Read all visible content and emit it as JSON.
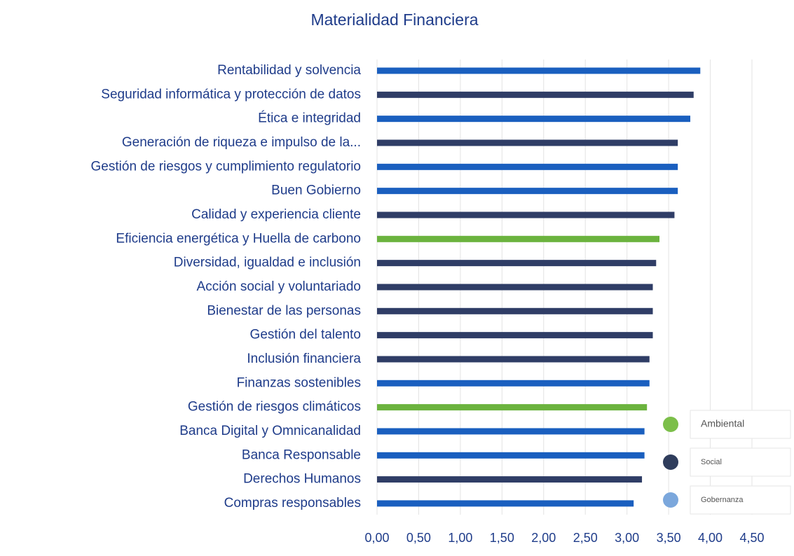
{
  "chart_data": {
    "type": "hbar",
    "title": "Materialidad Financiera",
    "categories": [
      "Rentabilidad y solvencia",
      "Seguridad informática y protección de datos",
      "Ética e integridad",
      "Generación de riqueza e impulso de la...",
      "Gestión de riesgos y cumplimiento regulatorio",
      "Buen Gobierno",
      "Calidad y experiencia cliente",
      "Eficiencia energética y Huella de carbono",
      "Diversidad, igualdad e inclusión",
      "Acción social y voluntariado",
      "Bienestar de las personas",
      "Gestión del talento",
      "Inclusión financiera",
      "Finanzas sostenibles",
      "Gestión de riesgos climáticos",
      "Banca Digital y Omnicanalidad",
      "Banca Responsable",
      "Derechos Humanos",
      "Compras responsables"
    ],
    "values": [
      3.88,
      3.8,
      3.76,
      3.61,
      3.61,
      3.61,
      3.57,
      3.39,
      3.35,
      3.31,
      3.31,
      3.31,
      3.27,
      3.27,
      3.24,
      3.21,
      3.21,
      3.18,
      3.08
    ],
    "bar_colors": [
      "#1a5fbf",
      "#2f3d66",
      "#1a5fbf",
      "#2f3d66",
      "#1a5fbf",
      "#1a5fbf",
      "#2f3d66",
      "#6bb33e",
      "#2f3d66",
      "#2f3d66",
      "#2f3d66",
      "#2f3d66",
      "#2f3d66",
      "#1a5fbf",
      "#6bb33e",
      "#1a5fbf",
      "#1a5fbf",
      "#2f3d66",
      "#1a5fbf"
    ],
    "legend": [
      {
        "name": "Ambiental",
        "color": "#7cbf4a"
      },
      {
        "name": "Social",
        "color": "#2f3d5c"
      },
      {
        "name": "Gobernanza",
        "color": "#7ba7dc"
      }
    ],
    "xlim": [
      0,
      4.5
    ],
    "xticks": [
      {
        "value": 0,
        "label": "0,00"
      },
      {
        "value": 0.5,
        "label": "0,50"
      },
      {
        "value": 1,
        "label": "1,00"
      },
      {
        "value": 1.5,
        "label": "1,50"
      },
      {
        "value": 2,
        "label": "2,00"
      },
      {
        "value": 2.5,
        "label": "2,50"
      },
      {
        "value": 3,
        "label": "3,00"
      },
      {
        "value": 3.5,
        "label": "3,50"
      },
      {
        "value": 4,
        "label": "4,00"
      },
      {
        "value": 4.5,
        "label": "4,50"
      }
    ],
    "grid": true
  }
}
